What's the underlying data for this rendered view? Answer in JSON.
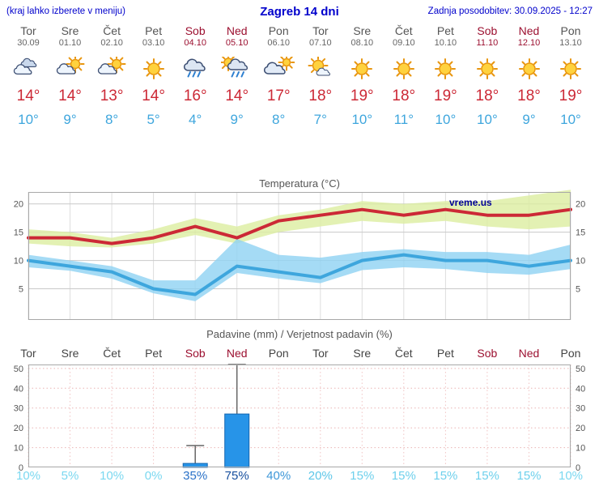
{
  "header": {
    "left_note": "(kraj lahko izberete v meniju)",
    "title": "Zagreb 14 dni",
    "last_update": "Zadnja posodobitev: 30.09.2025 - 12:27"
  },
  "colors": {
    "link_blue": "#0000cc",
    "weekend_red": "#9c1030",
    "weekday_gray": "#555555",
    "high_temp_red": "#cc2936",
    "low_temp_blue": "#3ea6dd"
  },
  "forecast": {
    "days": [
      {
        "name": "Tor",
        "date": "30.09",
        "weekend": false,
        "icon": "cloudy",
        "high": "14°",
        "low": "10°"
      },
      {
        "name": "Sre",
        "date": "01.10",
        "weekend": false,
        "icon": "partly-cloudy",
        "high": "14°",
        "low": "9°"
      },
      {
        "name": "Čet",
        "date": "02.10",
        "weekend": false,
        "icon": "partly-cloudy",
        "high": "13°",
        "low": "8°"
      },
      {
        "name": "Pet",
        "date": "03.10",
        "weekend": false,
        "icon": "sunny",
        "high": "14°",
        "low": "5°"
      },
      {
        "name": "Sob",
        "date": "04.10",
        "weekend": true,
        "icon": "rain",
        "high": "16°",
        "low": "4°"
      },
      {
        "name": "Ned",
        "date": "05.10",
        "weekend": true,
        "icon": "sun-rain",
        "high": "14°",
        "low": "9°"
      },
      {
        "name": "Pon",
        "date": "06.10",
        "weekend": false,
        "icon": "mostly-cloudy",
        "high": "17°",
        "low": "8°"
      },
      {
        "name": "Tor",
        "date": "07.10",
        "weekend": false,
        "icon": "partly-sunny",
        "high": "18°",
        "low": "7°"
      },
      {
        "name": "Sre",
        "date": "08.10",
        "weekend": false,
        "icon": "sunny",
        "high": "19°",
        "low": "10°"
      },
      {
        "name": "Čet",
        "date": "09.10",
        "weekend": false,
        "icon": "sunny",
        "high": "18°",
        "low": "11°"
      },
      {
        "name": "Pet",
        "date": "10.10",
        "weekend": false,
        "icon": "sunny",
        "high": "19°",
        "low": "10°"
      },
      {
        "name": "Sob",
        "date": "11.10",
        "weekend": true,
        "icon": "sunny",
        "high": "18°",
        "low": "10°"
      },
      {
        "name": "Ned",
        "date": "12.10",
        "weekend": true,
        "icon": "sunny",
        "high": "18°",
        "low": "9°"
      },
      {
        "name": "Pon",
        "date": "13.10",
        "weekend": false,
        "icon": "sunny",
        "high": "19°",
        "low": "10°"
      }
    ]
  },
  "chart_data": [
    {
      "type": "line",
      "title": "Temperatura (°C)",
      "watermark": "vreme.us",
      "categories": [
        "30.09",
        "01.10",
        "02.10",
        "03.10",
        "04.10",
        "05.10",
        "06.10",
        "07.10",
        "08.10",
        "09.10",
        "10.10",
        "11.10",
        "12.10",
        "13.10"
      ],
      "yticks": [
        5,
        10,
        15,
        20
      ],
      "ylim": [
        -0.5,
        22.1
      ],
      "grid": true,
      "series": [
        {
          "name": "max temperature",
          "color": "#cc2936",
          "values": [
            14,
            14,
            13,
            14,
            16,
            14,
            17,
            18,
            19,
            18,
            19,
            18,
            18,
            19
          ],
          "band_upper": [
            15.5,
            15,
            14,
            15.5,
            17.5,
            16,
            18,
            19,
            20.5,
            20,
            20.5,
            20.5,
            21.5,
            22.5
          ],
          "band_lower": [
            13,
            12.5,
            12.3,
            13,
            14.5,
            13,
            15,
            16,
            17,
            16.5,
            17,
            16,
            15.5,
            16
          ],
          "band_color": "#dceda0"
        },
        {
          "name": "min temperature",
          "color": "#3ea6dd",
          "values": [
            10,
            9,
            8,
            5,
            4,
            9,
            8,
            7,
            10,
            11,
            10,
            10,
            9,
            10
          ],
          "band_upper": [
            11,
            10,
            9,
            6.5,
            6.5,
            13.8,
            11,
            10.5,
            11.5,
            12,
            11.5,
            11.5,
            11,
            12.8
          ],
          "band_lower": [
            8.8,
            8.2,
            6.8,
            4.2,
            2.8,
            7.8,
            6.8,
            6,
            8.3,
            8.8,
            8.5,
            7.8,
            7.5,
            8.5
          ],
          "band_color": "#8ed2f2"
        }
      ]
    },
    {
      "type": "bar",
      "title": "Padavine (mm) / Verjetnost padavin (%)",
      "categories": [
        "Tor",
        "Sre",
        "Čet",
        "Pet",
        "Sob",
        "Ned",
        "Pon",
        "Tor",
        "Sre",
        "Čet",
        "Pet",
        "Sob",
        "Ned",
        "Pon"
      ],
      "weekend": [
        false,
        false,
        false,
        false,
        true,
        true,
        false,
        false,
        false,
        false,
        false,
        true,
        true,
        false
      ],
      "precip_mm": [
        0,
        0,
        0,
        0,
        2,
        27,
        0,
        0,
        0,
        0,
        0,
        0,
        0,
        0
      ],
      "precip_max_mm": [
        0,
        0,
        0,
        0,
        11,
        52,
        0,
        0,
        0,
        0,
        0,
        0,
        0,
        0
      ],
      "probability": [
        {
          "text": "10%",
          "color": "#7bd8f0"
        },
        {
          "text": "5%",
          "color": "#7bd8f0"
        },
        {
          "text": "10%",
          "color": "#7bd8f0"
        },
        {
          "text": "0%",
          "color": "#7bd8f0"
        },
        {
          "text": "35%",
          "color": "#2b72c8"
        },
        {
          "text": "75%",
          "color": "#174f9e"
        },
        {
          "text": "40%",
          "color": "#3e97d8"
        },
        {
          "text": "20%",
          "color": "#5cc6e8"
        },
        {
          "text": "15%",
          "color": "#6ed0ec"
        },
        {
          "text": "15%",
          "color": "#6ed0ec"
        },
        {
          "text": "15%",
          "color": "#6ed0ec"
        },
        {
          "text": "15%",
          "color": "#6ed0ec"
        },
        {
          "text": "15%",
          "color": "#6ed0ec"
        },
        {
          "text": "10%",
          "color": "#7bd8f0"
        }
      ],
      "yticks": [
        0,
        10,
        20,
        30,
        40,
        50
      ],
      "ylim": [
        0,
        52
      ],
      "bar_color": "#2794e8"
    }
  ]
}
